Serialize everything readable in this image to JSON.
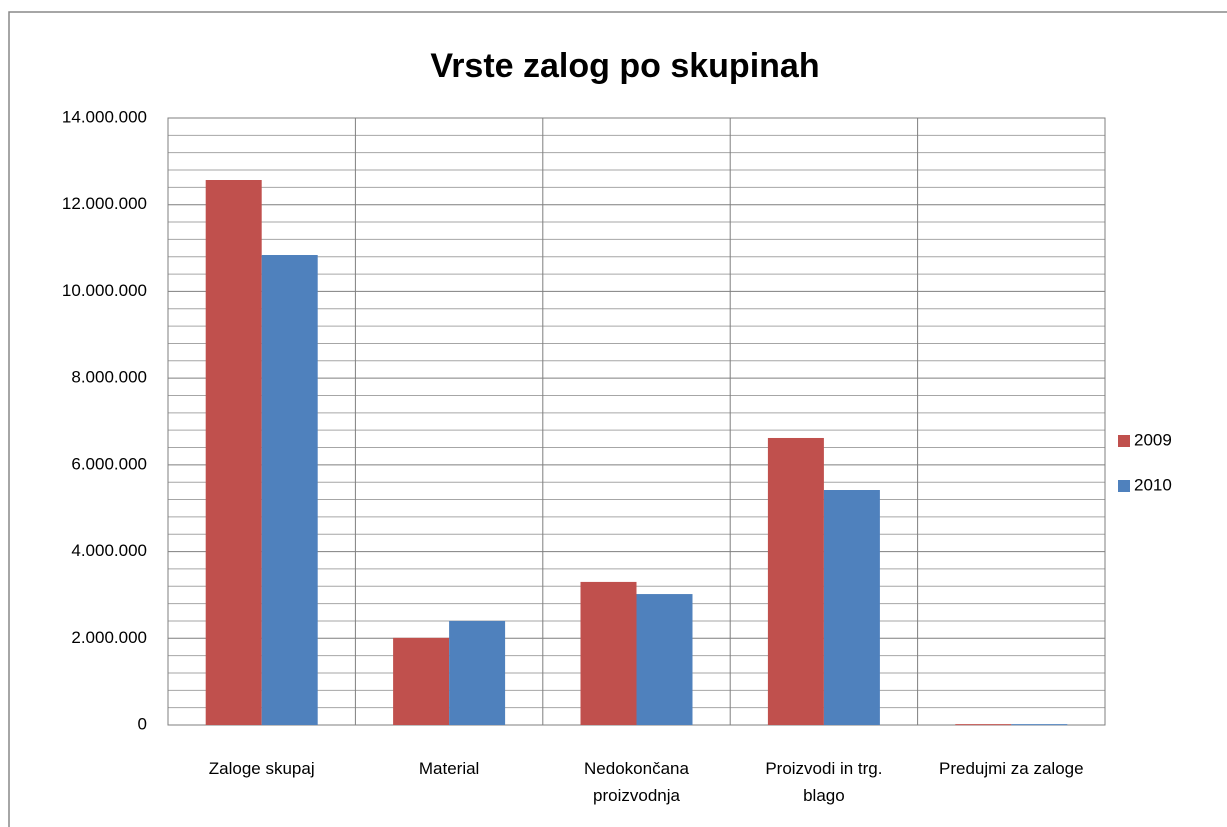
{
  "chart_data": {
    "type": "bar",
    "title": "Vrste zalog po skupinah",
    "categories": [
      [
        "Zaloge skupaj"
      ],
      [
        "Material"
      ],
      [
        "Nedokončana",
        "proizvodnja"
      ],
      [
        "Proizvodi in trg.",
        "blago"
      ],
      [
        "Predujmi za zaloge"
      ]
    ],
    "series": [
      {
        "name": "2009",
        "color": "#c0504d",
        "values": [
          12570000,
          2010000,
          3300000,
          6620000,
          20000
        ]
      },
      {
        "name": "2010",
        "color": "#4f81bd",
        "values": [
          10840000,
          2400000,
          3020000,
          5420000,
          20000
        ]
      }
    ],
    "ylim": [
      0,
      14000000
    ],
    "yticks": [
      {
        "value": 0,
        "label": "0"
      },
      {
        "value": 2000000,
        "label": "2.000.000"
      },
      {
        "value": 4000000,
        "label": "4.000.000"
      },
      {
        "value": 6000000,
        "label": "6.000.000"
      },
      {
        "value": 8000000,
        "label": "8.000.000"
      },
      {
        "value": 10000000,
        "label": "10.000.000"
      },
      {
        "value": 12000000,
        "label": "12.000.000"
      },
      {
        "value": 14000000,
        "label": "14.000.000"
      }
    ],
    "minor_yticks": [
      400000,
      800000,
      1200000,
      1600000,
      2400000,
      2800000,
      3200000,
      3600000,
      4400000,
      4800000,
      5200000,
      5600000,
      6400000,
      6800000,
      7200000,
      7600000,
      8400000,
      8800000,
      9200000,
      9600000,
      10400000,
      10800000,
      11200000,
      11600000,
      12400000,
      12800000,
      13200000,
      13600000
    ],
    "grid": true,
    "legend": "right"
  }
}
